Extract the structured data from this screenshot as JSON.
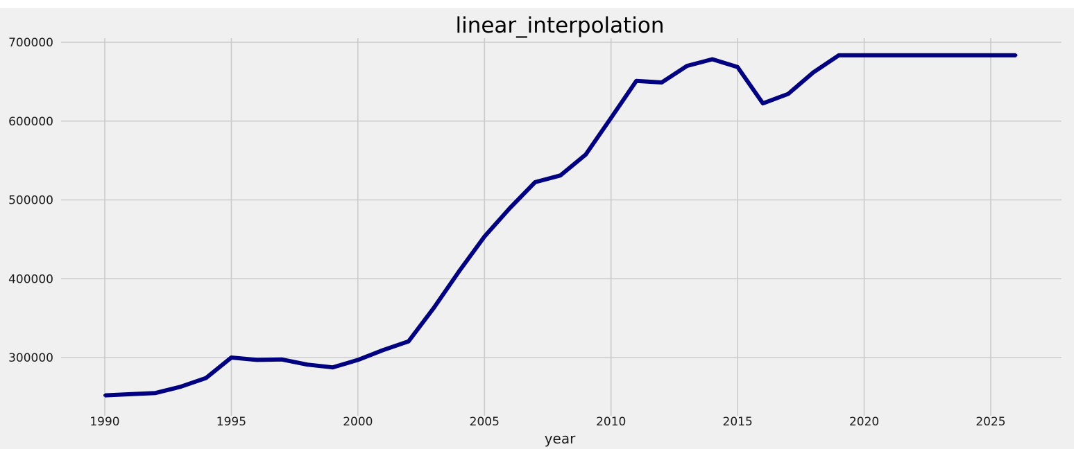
{
  "chart_data": {
    "type": "line",
    "title": "linear_interpolation",
    "xlabel": "year",
    "ylabel": "",
    "xlim": [
      1988.3,
      1928.2
    ],
    "ylim": [
      237000,
      705000
    ],
    "x_ticks": [
      1990,
      1995,
      2000,
      2005,
      2010,
      2015,
      2020,
      2025
    ],
    "y_ticks": [
      300000,
      400000,
      500000,
      600000,
      700000
    ],
    "x_tick_labels": [
      "1990",
      "1995",
      "2000",
      "2005",
      "2010",
      "2015",
      "2020",
      "2025"
    ],
    "y_tick_labels": [
      "300000",
      "400000",
      "500000",
      "600000",
      "700000"
    ],
    "grid": true,
    "background": "#f0f0f0",
    "grid_color": "#cbcbcb",
    "series": [
      {
        "color": "#000080",
        "x": [
          1990,
          1991,
          1992,
          1993,
          1994,
          1995,
          1996,
          1997,
          1998,
          1999,
          2000,
          2001,
          2002,
          2003,
          2004,
          2005,
          2006,
          2007,
          2008,
          2009,
          2010,
          2011,
          2012,
          2013,
          2014,
          2015,
          2016,
          2017,
          2018,
          2019,
          2020,
          2021,
          2022,
          2023,
          2024,
          2025,
          2026
        ],
        "values": [
          252000,
          253500,
          255000,
          263000,
          274000,
          300000,
          297000,
          297500,
          291000,
          287500,
          297000,
          309500,
          320500,
          363000,
          409500,
          453500,
          489500,
          522500,
          531000,
          557500,
          604000,
          651000,
          649000,
          670000,
          678500,
          668500,
          622500,
          634500,
          662000,
          683500,
          683500,
          683500,
          683500,
          683500,
          683500,
          683500,
          683500
        ]
      }
    ]
  }
}
